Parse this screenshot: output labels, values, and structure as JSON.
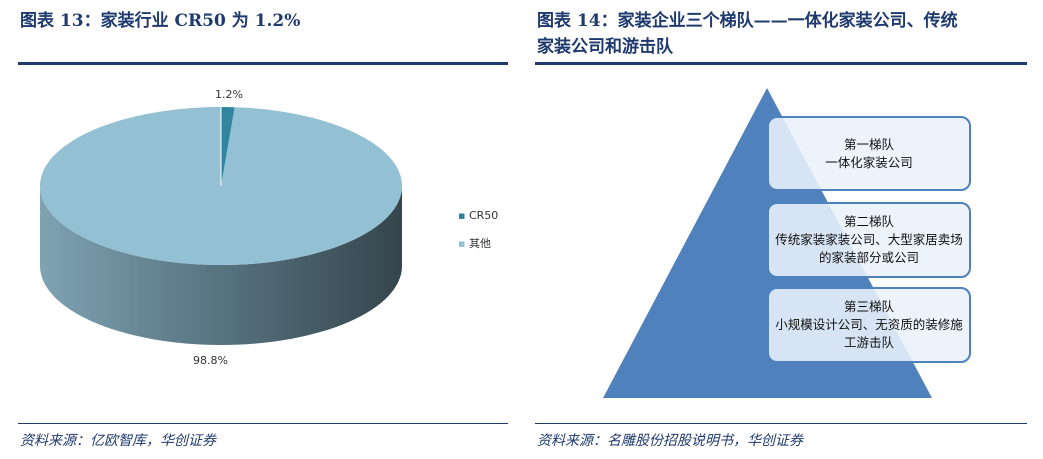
{
  "left": {
    "title": "图表 13：家装行业 CR50 为 1.2%",
    "source": "资料来源：亿欧智库，华创证券"
  },
  "right": {
    "title_line1": "图表 14：家装企业三个梯队——一体化家装公司、传统",
    "title_line2": "家装公司和游击队",
    "source": "资料来源：名雕股份招股说明书，华创证券",
    "tiers": [
      {
        "name": "第一梯队",
        "desc": "一体化家装公司"
      },
      {
        "name": "第二梯队",
        "desc": "传统家装家装公司、大型家居卖场的家装部分或公司"
      },
      {
        "name": "第三梯队",
        "desc": "小规模设计公司、无资质的装修施工游击队"
      }
    ]
  },
  "chart_data": {
    "type": "pie",
    "style": "3d",
    "categories": [
      "CR50",
      "其他"
    ],
    "values": [
      1.2,
      98.8
    ],
    "data_labels": [
      "1.2%",
      "98.8%"
    ],
    "colors": [
      "#31859c",
      "#93c0d3"
    ],
    "legend_placement": "right"
  },
  "colors": {
    "title": "#1f3a6e",
    "pyramid": "#4f81bd"
  }
}
